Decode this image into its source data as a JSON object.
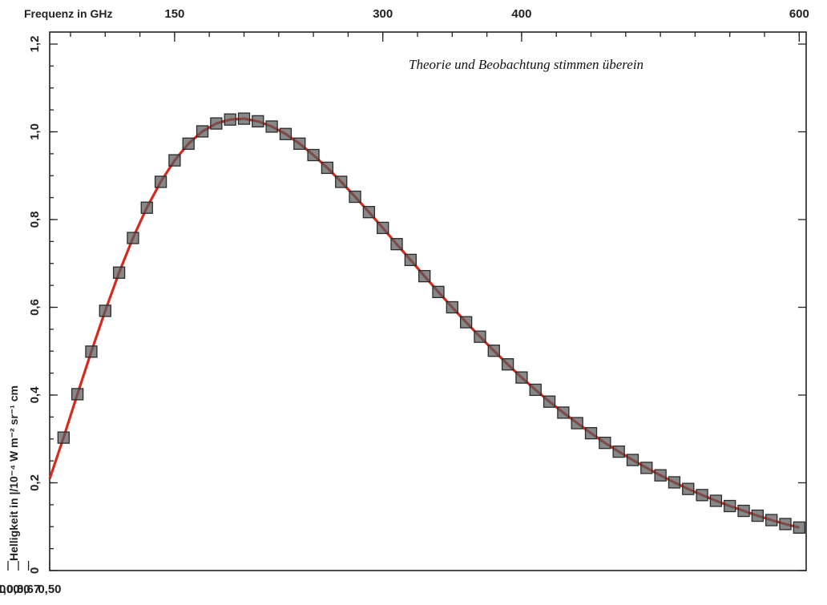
{
  "chart_data": {
    "type": "scatter",
    "annotation": "Theorie und Beobachtung stimmen überein",
    "ylabel": "Helligkeit in |/10⁻⁴ W m⁻² sr⁻¹ cm",
    "top_axis_label": "Frequenz in GHz",
    "top_ticks": [
      {
        "value": 150,
        "label": "150"
      },
      {
        "value": 300,
        "label": "300"
      },
      {
        "value": 400,
        "label": "400"
      },
      {
        "value": 600,
        "label": "600"
      }
    ],
    "bottom_ticks": [
      {
        "value": 4.0,
        "label": "4,00"
      },
      {
        "value": 2.0,
        "label": "2,00"
      },
      {
        "value": 1.5,
        "label": "1,50"
      },
      {
        "value": 1.0,
        "label": "1,00"
      },
      {
        "value": 0.8,
        "label": "0,80"
      },
      {
        "value": 0.67,
        "label": "0,67"
      },
      {
        "value": 0.5,
        "label": "0,50"
      }
    ],
    "y_ticks": [
      {
        "value": 0,
        "label": "0"
      },
      {
        "value": 0.2,
        "label": "0,2"
      },
      {
        "value": 0.4,
        "label": "0,4"
      },
      {
        "value": 0.6,
        "label": "0,6"
      },
      {
        "value": 0.8,
        "label": "0,8"
      },
      {
        "value": 1.0,
        "label": "1,0"
      },
      {
        "value": 1.2,
        "label": "1,2"
      }
    ],
    "ylim": [
      0,
      1.2
    ],
    "xlim_ghz": [
      60,
      605
    ],
    "series": [
      {
        "colors": {
          "line": "#d42a20"
        },
        "x": [
          60,
          70,
          80,
          90,
          100,
          110,
          120,
          130,
          140,
          150,
          160,
          170,
          180,
          190,
          200,
          210,
          220,
          230,
          240,
          250,
          260,
          270,
          280,
          290,
          300,
          310,
          320,
          330,
          340,
          350,
          360,
          370,
          380,
          390,
          400,
          410,
          420,
          430,
          440,
          450,
          460,
          470,
          480,
          490,
          500,
          510,
          520,
          530,
          540,
          550,
          560,
          570,
          580,
          590,
          600
        ],
        "values": [
          0.209,
          0.303,
          0.402,
          0.499,
          0.592,
          0.679,
          0.758,
          0.827,
          0.886,
          0.935,
          0.973,
          1.001,
          1.019,
          1.028,
          1.03,
          1.024,
          1.012,
          0.995,
          0.973,
          0.947,
          0.918,
          0.886,
          0.852,
          0.817,
          0.781,
          0.744,
          0.708,
          0.671,
          0.635,
          0.6,
          0.566,
          0.533,
          0.501,
          0.47,
          0.44,
          0.412,
          0.385,
          0.36,
          0.336,
          0.313,
          0.291,
          0.271,
          0.252,
          0.234,
          0.217,
          0.201,
          0.186,
          0.172,
          0.159,
          0.147,
          0.136,
          0.125,
          0.115,
          0.106,
          0.098
        ]
      },
      {
        "colors": {
          "marker": "#5a5a5a"
        },
        "x": [
          70,
          80,
          90,
          100,
          110,
          120,
          130,
          140,
          150,
          160,
          170,
          180,
          190,
          200,
          210,
          220,
          230,
          240,
          250,
          260,
          270,
          280,
          290,
          300,
          310,
          320,
          330,
          340,
          350,
          360,
          370,
          380,
          390,
          400,
          410,
          420,
          430,
          440,
          450,
          460,
          470,
          480,
          490,
          500,
          510,
          520,
          530,
          540,
          550,
          560,
          570,
          580,
          590,
          600
        ],
        "values": [
          0.303,
          0.402,
          0.499,
          0.592,
          0.679,
          0.758,
          0.827,
          0.886,
          0.935,
          0.973,
          1.001,
          1.019,
          1.028,
          1.03,
          1.024,
          1.012,
          0.995,
          0.973,
          0.947,
          0.918,
          0.886,
          0.852,
          0.817,
          0.781,
          0.744,
          0.708,
          0.671,
          0.635,
          0.6,
          0.566,
          0.533,
          0.501,
          0.47,
          0.44,
          0.412,
          0.385,
          0.36,
          0.336,
          0.313,
          0.291,
          0.271,
          0.252,
          0.234,
          0.217,
          0.201,
          0.186,
          0.172,
          0.159,
          0.147,
          0.136,
          0.125,
          0.115,
          0.106,
          0.098
        ]
      }
    ]
  }
}
